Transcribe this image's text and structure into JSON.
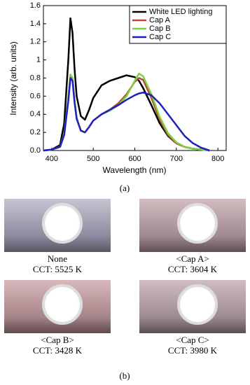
{
  "chart_data": {
    "type": "line",
    "x_label": "Wavelength (nm)",
    "y_label": "Intensity (arb. units)",
    "x": [
      380,
      400,
      420,
      430,
      440,
      445,
      450,
      455,
      460,
      470,
      480,
      490,
      500,
      520,
      540,
      560,
      580,
      600,
      610,
      620,
      640,
      660,
      680,
      700,
      720,
      740,
      760,
      780
    ],
    "series": [
      {
        "name": "White LED lighting",
        "color": "#000000",
        "values": [
          0,
          0.01,
          0.06,
          0.3,
          1.0,
          1.46,
          1.3,
          0.9,
          0.6,
          0.38,
          0.34,
          0.45,
          0.58,
          0.72,
          0.77,
          0.8,
          0.83,
          0.81,
          0.77,
          0.69,
          0.5,
          0.3,
          0.16,
          0.08,
          0.04,
          0.02,
          0.01,
          0
        ]
      },
      {
        "name": "Cap A",
        "color": "#b5483a",
        "values": [
          0,
          0.01,
          0.04,
          0.18,
          0.58,
          0.83,
          0.8,
          0.55,
          0.36,
          0.22,
          0.2,
          0.26,
          0.33,
          0.4,
          0.45,
          0.52,
          0.62,
          0.76,
          0.8,
          0.78,
          0.58,
          0.34,
          0.17,
          0.08,
          0.04,
          0.02,
          0.01,
          0
        ]
      },
      {
        "name": "Cap B",
        "color": "#7cd23a",
        "values": [
          0,
          0.01,
          0.04,
          0.18,
          0.58,
          0.84,
          0.8,
          0.55,
          0.36,
          0.22,
          0.2,
          0.26,
          0.33,
          0.4,
          0.44,
          0.5,
          0.6,
          0.77,
          0.85,
          0.82,
          0.62,
          0.37,
          0.19,
          0.09,
          0.04,
          0.02,
          0.01,
          0
        ]
      },
      {
        "name": "Cap C",
        "color": "#1f1fc4",
        "values": [
          0,
          0.01,
          0.04,
          0.17,
          0.55,
          0.8,
          0.77,
          0.53,
          0.35,
          0.22,
          0.2,
          0.26,
          0.33,
          0.4,
          0.45,
          0.5,
          0.56,
          0.61,
          0.63,
          0.64,
          0.61,
          0.52,
          0.4,
          0.28,
          0.16,
          0.08,
          0.03,
          0
        ]
      }
    ],
    "xlim": [
      380,
      820
    ],
    "xticks": [
      400,
      500,
      600,
      700,
      800
    ],
    "ylim": [
      0,
      1.6
    ],
    "yticks": [
      {
        "value": 0,
        "label": "0.0"
      },
      0.2,
      0.4,
      0.6,
      0.8,
      1.0,
      1.2,
      1.4,
      1.6
    ],
    "legend": "upper right"
  },
  "figure": {
    "panel_a": "(a)",
    "panel_b": "(b)",
    "photos": [
      {
        "title": "None",
        "cct": "CCT: 5525 K"
      },
      {
        "title": "<Cap A>",
        "cct": "CCT: 3604 K"
      },
      {
        "title": "<Cap B>",
        "cct": "CCT: 3428 K"
      },
      {
        "title": "<Cap C>",
        "cct": "CCT: 3980 K"
      }
    ]
  }
}
